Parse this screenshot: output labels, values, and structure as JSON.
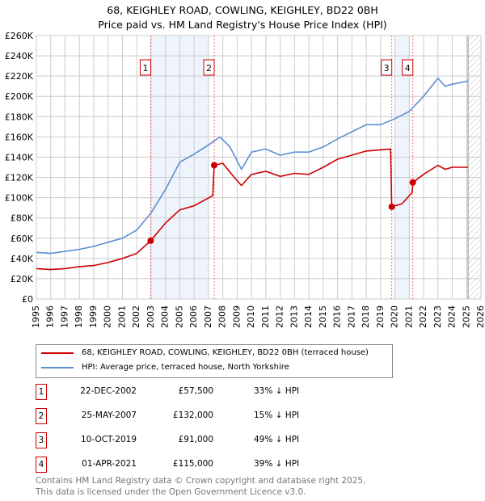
{
  "title": "68, KEIGHLEY ROAD, COWLING, KEIGHLEY, BD22 0BH",
  "subtitle": "Price paid vs. HM Land Registry's House Price Index (HPI)",
  "chart_data": {
    "type": "line",
    "xlim": [
      1995,
      2026
    ],
    "ylim": [
      0,
      260000
    ],
    "yticks": [
      0,
      20000,
      40000,
      60000,
      80000,
      100000,
      120000,
      140000,
      160000,
      180000,
      200000,
      220000,
      240000,
      260000
    ],
    "ytick_labels": [
      "£0",
      "£20K",
      "£40K",
      "£60K",
      "£80K",
      "£100K",
      "£120K",
      "£140K",
      "£160K",
      "£180K",
      "£200K",
      "£220K",
      "£240K",
      "£260K"
    ],
    "xticks": [
      1995,
      1996,
      1997,
      1998,
      1999,
      2000,
      2001,
      2002,
      2003,
      2004,
      2005,
      2006,
      2007,
      2008,
      2009,
      2010,
      2011,
      2012,
      2013,
      2014,
      2015,
      2016,
      2017,
      2018,
      2019,
      2020,
      2021,
      2022,
      2023,
      2024,
      2025,
      2026
    ],
    "grid": true,
    "shaded_ranges": [
      [
        2003,
        2007
      ],
      [
        2020,
        2021
      ]
    ],
    "future_hatch_from": 2025.1,
    "series": [
      {
        "name": "68, KEIGHLEY ROAD, COWLING, KEIGHLEY, BD22 0BH (terraced house)",
        "color": "#cc0000",
        "x": [
          1995,
          1996,
          1997,
          1998,
          1999,
          2000,
          2001,
          2002,
          2002.97,
          2004,
          2005,
          2006,
          2007.3,
          2007.4,
          2008,
          2008.8,
          2009.3,
          2010,
          2011,
          2012,
          2013,
          2014,
          2015,
          2016,
          2017,
          2018,
          2019.7,
          2019.78,
          2020.5,
          2021.2,
          2021.25,
          2022,
          2023,
          2023.5,
          2024,
          2025.1
        ],
        "y": [
          30000,
          29000,
          30000,
          32000,
          33000,
          36000,
          40000,
          45000,
          57500,
          75000,
          88000,
          92000,
          102000,
          132000,
          134000,
          120000,
          112000,
          123000,
          126000,
          121000,
          124000,
          123000,
          130000,
          138000,
          142000,
          146000,
          148000,
          91000,
          94000,
          105000,
          115000,
          123000,
          132000,
          128000,
          130000,
          130000
        ]
      },
      {
        "name": "HPI: Average price, terraced house, North Yorkshire",
        "color": "#5b8fd0",
        "x": [
          1995,
          1996,
          1997,
          1998,
          1999,
          2000,
          2001,
          2002,
          2003,
          2004,
          2005,
          2006,
          2007,
          2007.8,
          2008.5,
          2009.3,
          2010,
          2011,
          2012,
          2013,
          2014,
          2015,
          2016,
          2017,
          2018,
          2019,
          2020,
          2021,
          2022,
          2023,
          2023.5,
          2024,
          2025.1
        ],
        "y": [
          46000,
          45000,
          47000,
          49000,
          52000,
          56000,
          60000,
          68000,
          85000,
          108000,
          135000,
          143000,
          152000,
          160000,
          150000,
          128000,
          145000,
          148000,
          142000,
          145000,
          145000,
          150000,
          158000,
          165000,
          172000,
          172000,
          178000,
          185000,
          200000,
          218000,
          210000,
          212000,
          215000
        ]
      }
    ],
    "sales": [
      {
        "n": "1",
        "x": 2002.97,
        "y": 57500,
        "date": "22-DEC-2002",
        "price": "£57,500",
        "hpi": "33% ↓ HPI"
      },
      {
        "n": "2",
        "x": 2007.4,
        "y": 132000,
        "date": "25-MAY-2007",
        "price": "£132,000",
        "hpi": "15% ↓ HPI"
      },
      {
        "n": "3",
        "x": 2019.78,
        "y": 91000,
        "date": "10-OCT-2019",
        "price": "£91,000",
        "hpi": "49% ↓ HPI"
      },
      {
        "n": "4",
        "x": 2021.25,
        "y": 115000,
        "date": "01-APR-2021",
        "price": "£115,000",
        "hpi": "39% ↓ HPI"
      }
    ]
  },
  "footer": [
    "Contains HM Land Registry data © Crown copyright and database right 2025.",
    "This data is licensed under the Open Government Licence v3.0."
  ]
}
